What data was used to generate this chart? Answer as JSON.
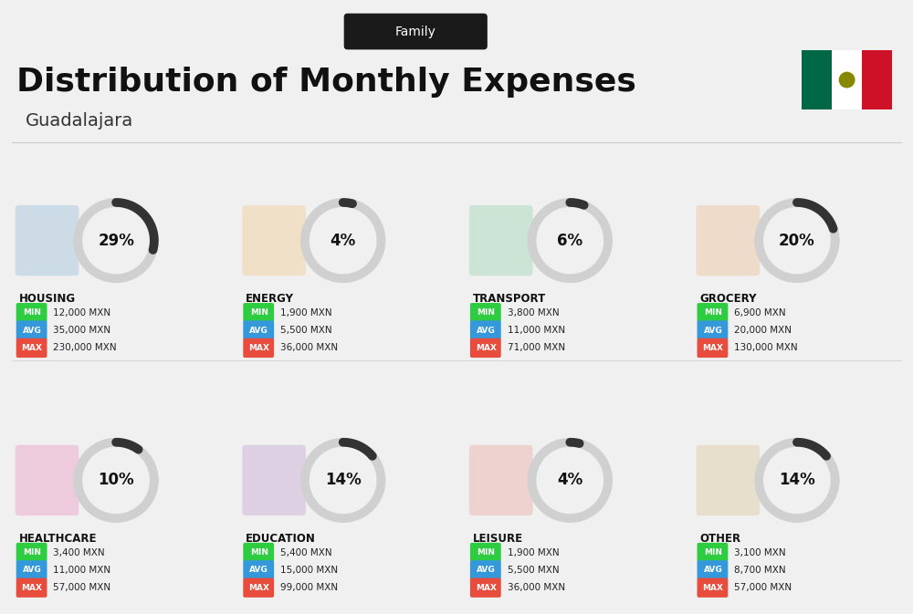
{
  "title": "Distribution of Monthly Expenses",
  "subtitle": "Family",
  "location": "Guadalajara",
  "background_color": "#f0f0f0",
  "categories": [
    {
      "name": "HOUSING",
      "pct": 29,
      "min": "12,000 MXN",
      "avg": "35,000 MXN",
      "max": "230,000 MXN",
      "row": 0,
      "col": 0
    },
    {
      "name": "ENERGY",
      "pct": 4,
      "min": "1,900 MXN",
      "avg": "5,500 MXN",
      "max": "36,000 MXN",
      "row": 0,
      "col": 1
    },
    {
      "name": "TRANSPORT",
      "pct": 6,
      "min": "3,800 MXN",
      "avg": "11,000 MXN",
      "max": "71,000 MXN",
      "row": 0,
      "col": 2
    },
    {
      "name": "GROCERY",
      "pct": 20,
      "min": "6,900 MXN",
      "avg": "20,000 MXN",
      "max": "130,000 MXN",
      "row": 0,
      "col": 3
    },
    {
      "name": "HEALTHCARE",
      "pct": 10,
      "min": "3,400 MXN",
      "avg": "11,000 MXN",
      "max": "57,000 MXN",
      "row": 1,
      "col": 0
    },
    {
      "name": "EDUCATION",
      "pct": 14,
      "min": "5,400 MXN",
      "avg": "15,000 MXN",
      "max": "99,000 MXN",
      "row": 1,
      "col": 1
    },
    {
      "name": "LEISURE",
      "pct": 4,
      "min": "1,900 MXN",
      "avg": "5,500 MXN",
      "max": "36,000 MXN",
      "row": 1,
      "col": 2
    },
    {
      "name": "OTHER",
      "pct": 14,
      "min": "3,100 MXN",
      "avg": "8,700 MXN",
      "max": "57,000 MXN",
      "row": 1,
      "col": 3
    }
  ],
  "min_color": "#2ecc40",
  "avg_color": "#3498db",
  "max_color": "#e74c3c",
  "label_color": "#ffffff",
  "arc_bg_color": "#d0d0d0",
  "arc_fg_color": "#333333",
  "category_name_color": "#111111",
  "value_text_color": "#222222"
}
